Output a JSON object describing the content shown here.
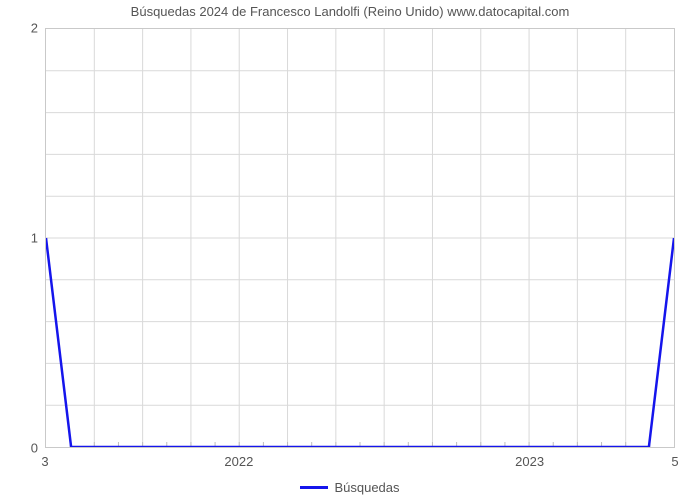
{
  "chart": {
    "type": "line",
    "title": "Búsquedas 2024 de Francesco Landolfi (Reino Unido) www.datocapital.com",
    "title_fontsize": 13,
    "title_color": "#555555",
    "background_color": "#ffffff",
    "plot_border_color": "#c9c9c9",
    "grid_color": "#d9d9d9",
    "line_color": "#1515ec",
    "line_width": 2.5,
    "xlim_index": [
      0,
      25
    ],
    "x_cell_count": 13,
    "x_minor_per_cell": 2,
    "x_ticks": [
      {
        "pos": 4,
        "label": "2022"
      },
      {
        "pos": 10,
        "label": "2023"
      }
    ],
    "x_corner_left": "3",
    "x_corner_right": "5",
    "ylim": [
      0,
      2
    ],
    "y_cell_count": 10,
    "y_ticks": [
      {
        "pos": 0,
        "label": "0"
      },
      {
        "pos": 5,
        "label": "1"
      },
      {
        "pos": 10,
        "label": "2"
      }
    ],
    "legend": {
      "label": "Búsquedas",
      "color": "#1515ec"
    },
    "series": {
      "x": [
        0,
        1,
        2,
        3,
        4,
        5,
        6,
        7,
        8,
        9,
        10,
        11,
        12,
        13,
        14,
        15,
        16,
        17,
        18,
        19,
        20,
        21,
        22,
        23,
        24,
        25
      ],
      "y": [
        1,
        0,
        0,
        0,
        0,
        0,
        0,
        0,
        0,
        0,
        0,
        0,
        0,
        0,
        0,
        0,
        0,
        0,
        0,
        0,
        0,
        0,
        0,
        0,
        0,
        1
      ]
    }
  }
}
